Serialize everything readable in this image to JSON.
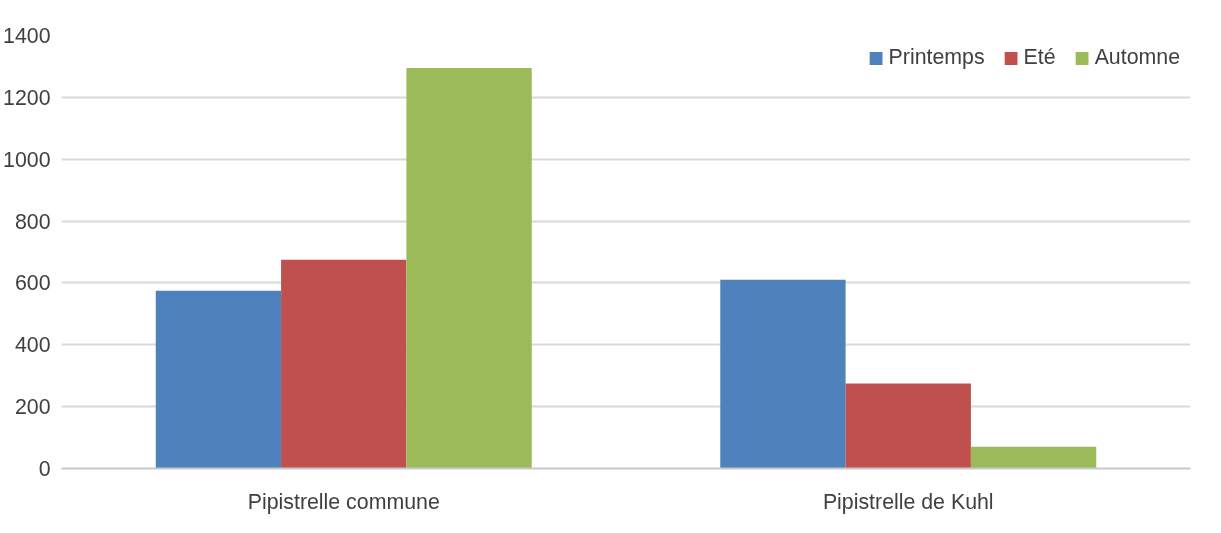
{
  "chart_data": {
    "type": "bar",
    "categories": [
      "Pipistrelle commune",
      "Pipistrelle de Kuhl"
    ],
    "series": [
      {
        "name": "Printemps",
        "color": "#4f81bd",
        "values": [
          575,
          610
        ]
      },
      {
        "name": "Eté",
        "color": "#c0504d",
        "values": [
          675,
          275
        ]
      },
      {
        "name": "Automne",
        "color": "#9bbb59",
        "values": [
          1295,
          70
        ]
      }
    ],
    "ylim": [
      0,
      1400
    ],
    "yticks": [
      0,
      200,
      400,
      600,
      800,
      1000,
      1200,
      1400
    ],
    "grid": "y",
    "legend": "top right"
  }
}
